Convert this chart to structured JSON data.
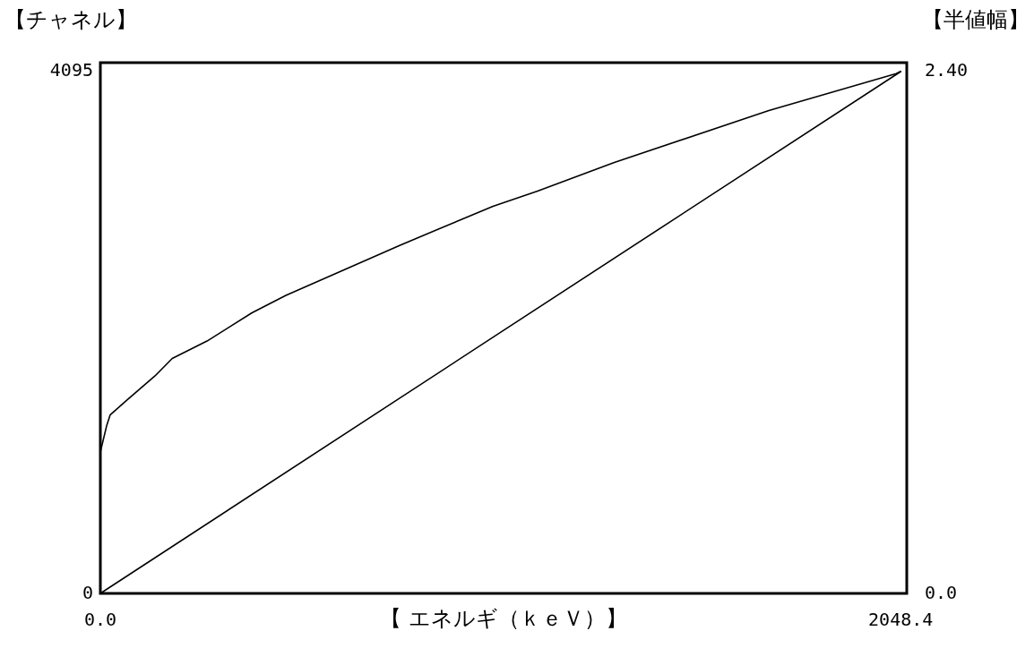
{
  "chart_data": {
    "type": "line",
    "xlabel": "【 エネルギ（ｋｅＶ）】",
    "ylabel": "【チャネル】",
    "y2label": "【半値幅】",
    "xlim": [
      0,
      2064
    ],
    "xticks": [
      {
        "value": 0,
        "label": "0.0"
      },
      2048.4
    ],
    "ylim": [
      0,
      4165
    ],
    "yticks": [
      0,
      4095
    ],
    "y2lim": [
      0,
      2.44
    ],
    "y2ticks": [
      {
        "value": 0,
        "label": "0.0"
      },
      {
        "value": 2.4,
        "label": "2.40"
      }
    ],
    "grid": false,
    "marker": "none",
    "line_style": "solid",
    "series": [
      {
        "color": "#000000",
        "x": [
          0,
          1024,
          2048.4
        ],
        "values": [
          0,
          2048,
          4095
        ]
      },
      {
        "color": "#000000",
        "axis": "y2",
        "x": [
          0,
          16,
          25,
          69,
          140,
          184,
          273,
          388,
          475,
          766,
          1005,
          1119,
          1314,
          1711,
          2037,
          2048.4
        ],
        "values": [
          0.65,
          0.77,
          0.82,
          0.89,
          1.0,
          1.08,
          1.16,
          1.29,
          1.37,
          1.6,
          1.78,
          1.85,
          1.98,
          2.22,
          2.39,
          2.4
        ]
      }
    ]
  }
}
